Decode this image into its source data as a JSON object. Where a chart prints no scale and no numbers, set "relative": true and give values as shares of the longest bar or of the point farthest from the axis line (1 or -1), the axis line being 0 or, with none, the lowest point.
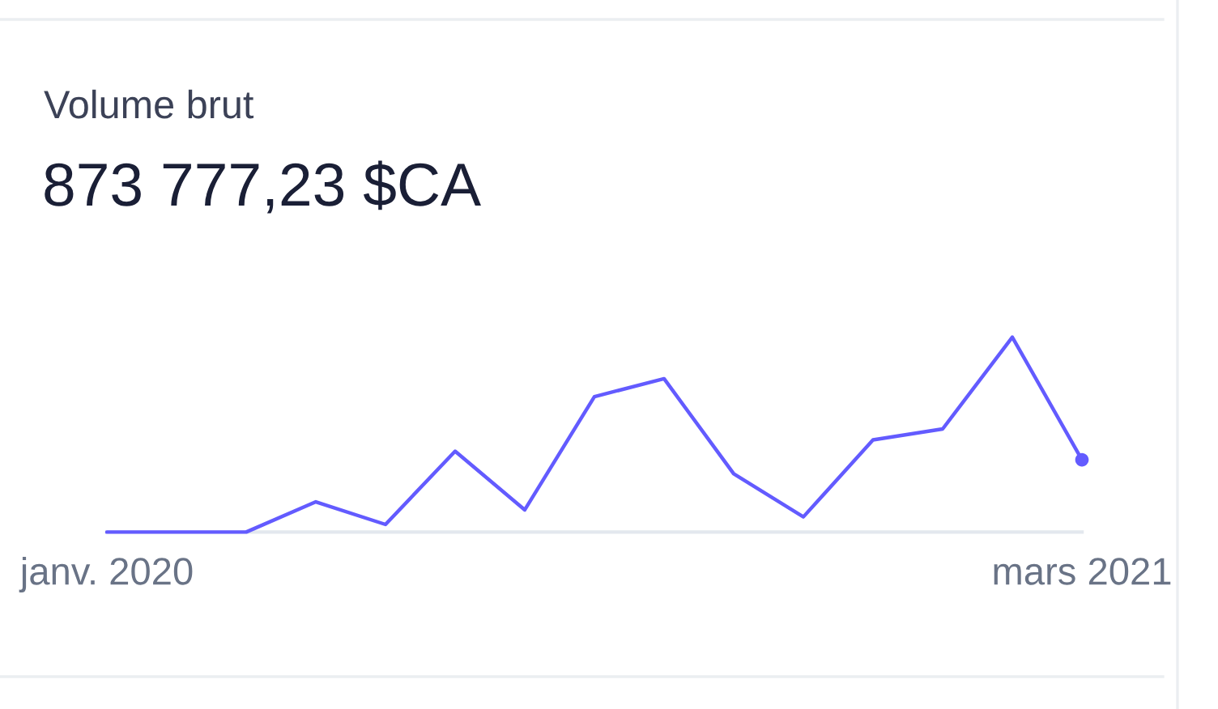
{
  "chart_data": {
    "type": "line",
    "title": "Volume brut",
    "subtitle": "873 777,23 $CA",
    "categories": [
      "janv. 2020",
      null,
      null,
      null,
      null,
      null,
      null,
      null,
      null,
      null,
      null,
      null,
      null,
      null,
      "mars 2021"
    ],
    "relative": true,
    "series": [
      {
        "color": "#635bff",
        "values": [
          0,
          0,
          0,
          0.155,
          0.039,
          0.415,
          0.114,
          0.695,
          0.787,
          0.299,
          0.078,
          0.473,
          0.529,
          1,
          0.371
        ]
      },
      {
        "type": "scatter",
        "marker": "circle",
        "color": "#635bff",
        "values": [
          null,
          null,
          null,
          null,
          null,
          null,
          null,
          null,
          null,
          null,
          null,
          null,
          null,
          null,
          0.371
        ]
      }
    ]
  }
}
